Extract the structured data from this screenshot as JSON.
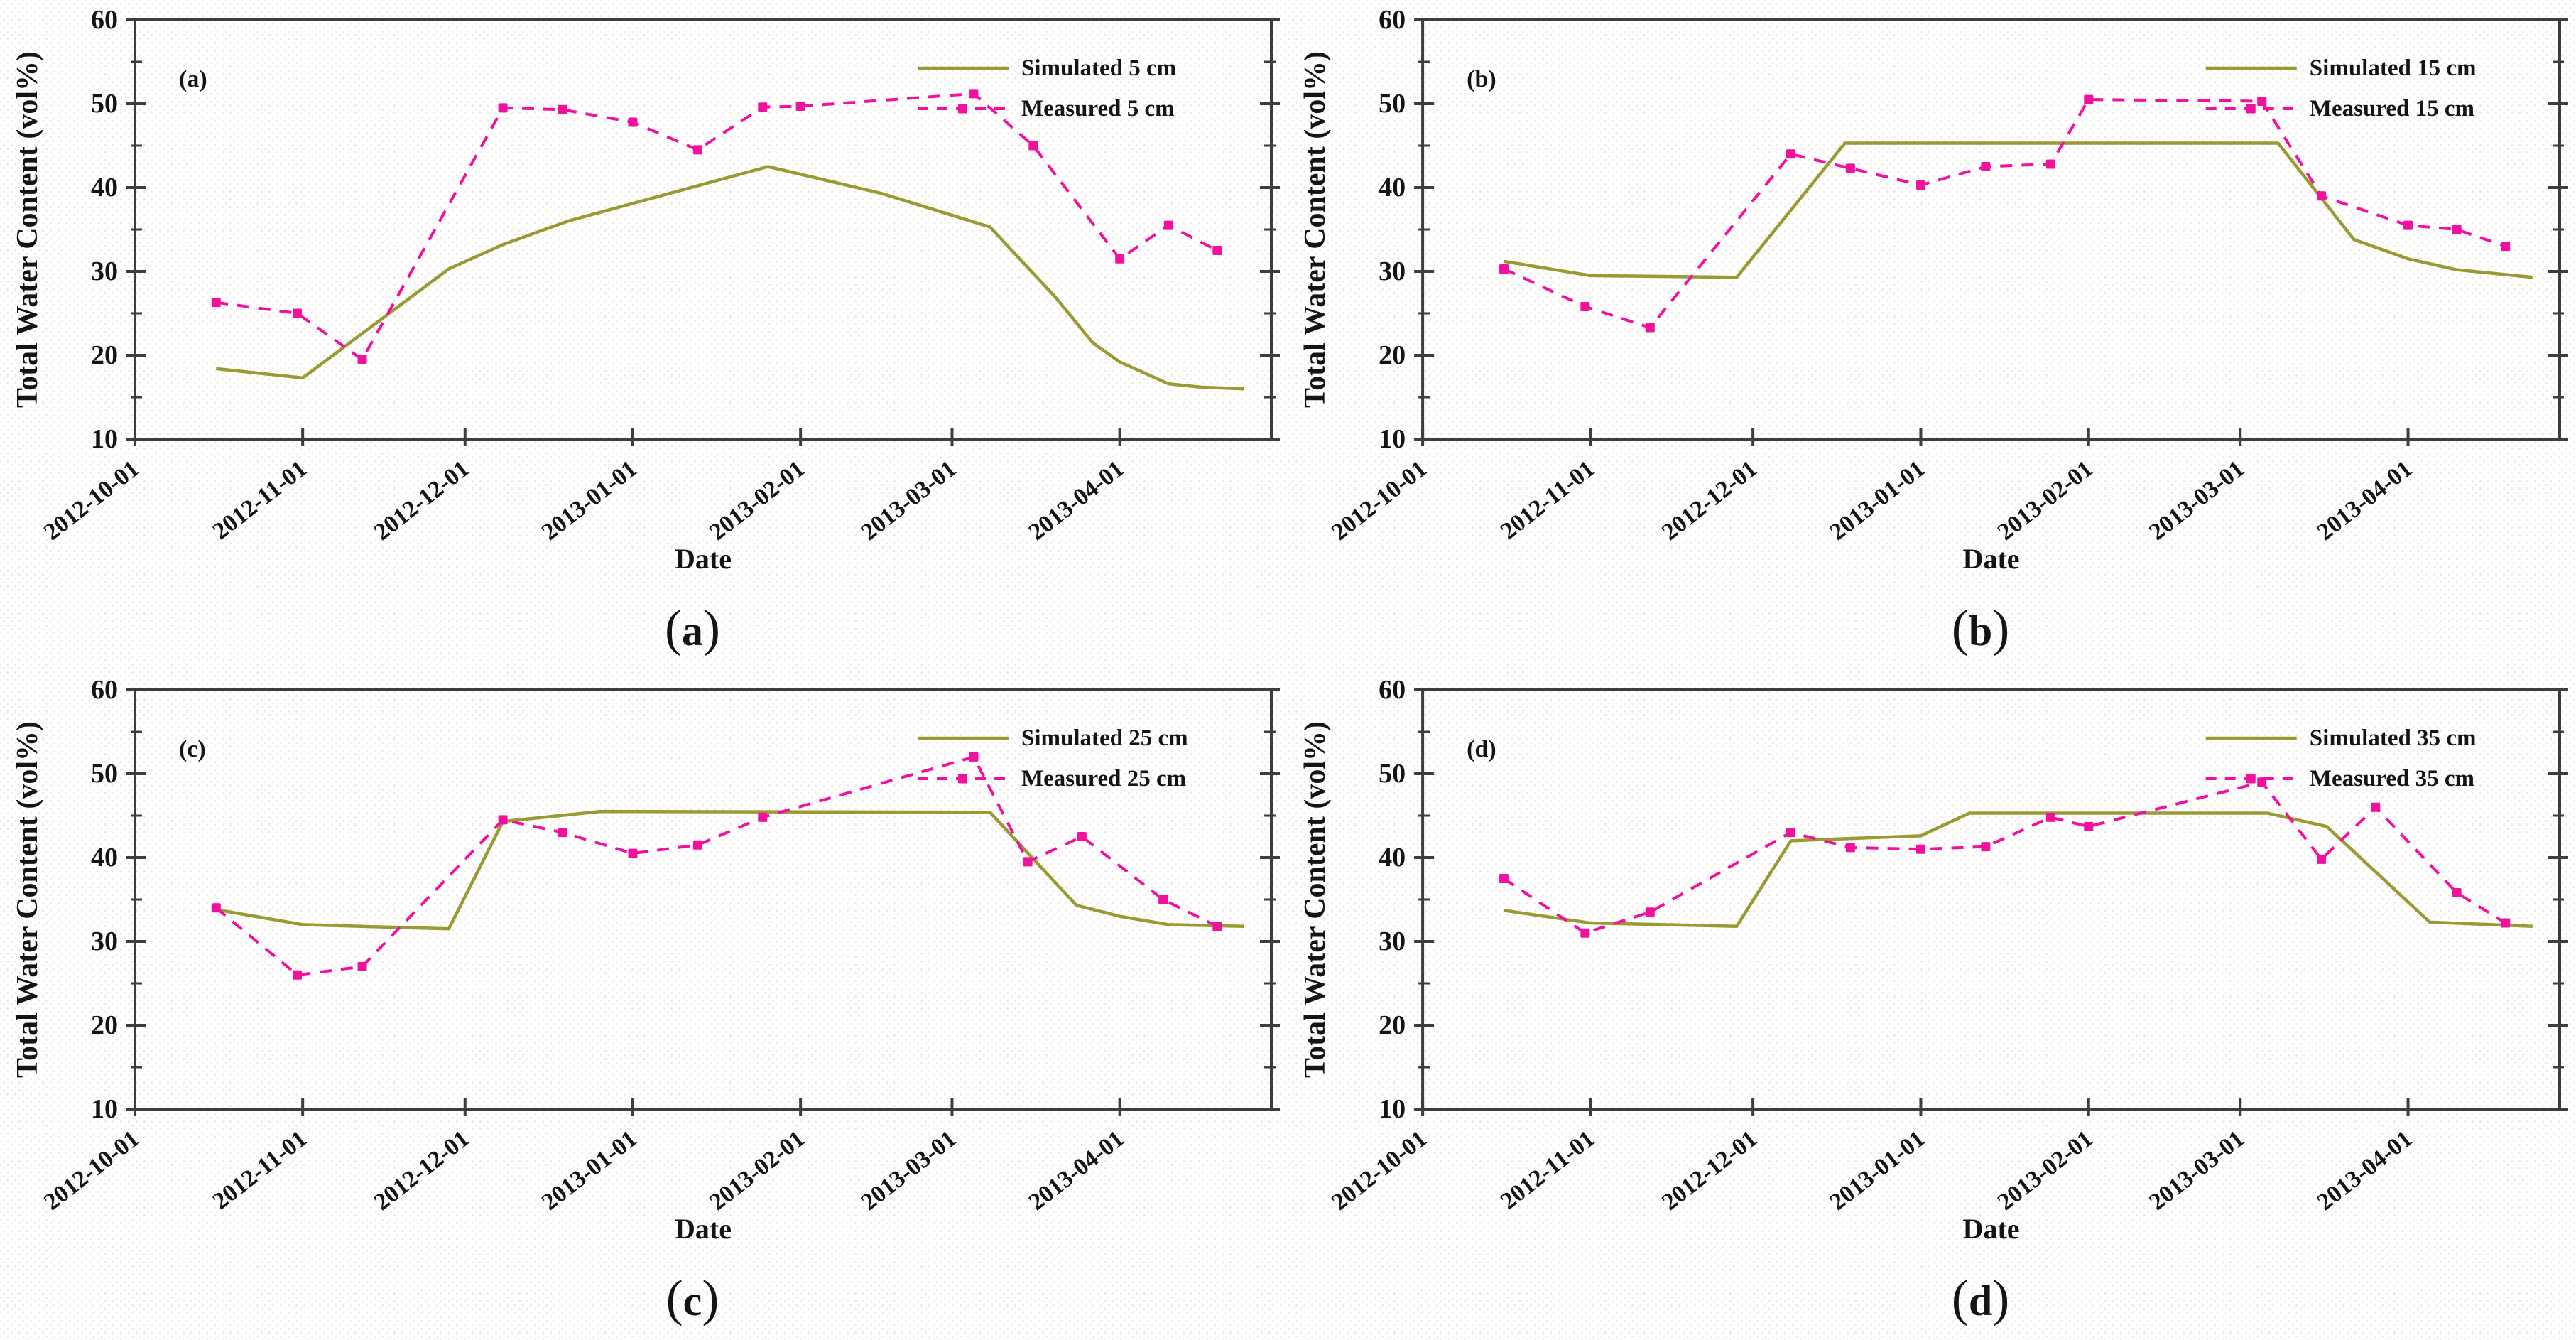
{
  "figure": {
    "y_axis_label": "Total Water Content (vol%)",
    "x_axis_label": "Date",
    "y_ticks": [
      10,
      20,
      30,
      40,
      50,
      60
    ],
    "y_minor_ticks": [
      15,
      25,
      35,
      45,
      55
    ],
    "x_tick_labels": [
      "2012-10-01",
      "2012-11-01",
      "2012-12-01",
      "2013-01-01",
      "2013-02-01",
      "2013-03-01",
      "2013-04-01"
    ],
    "x_tick_days": [
      0,
      31,
      61,
      92,
      123,
      151,
      182
    ],
    "ylim": [
      10,
      60
    ],
    "xlim_days": [
      0,
      210
    ],
    "grid": "off",
    "legend_position": "top-right-inside",
    "colors": {
      "simulated": "#9A9A33",
      "measured": "#F2119C",
      "axis": "#3d3d3d",
      "text": "#141414"
    }
  },
  "chart_data": [
    {
      "type": "line",
      "panel_letter": "(a)",
      "caption": {
        "open": "(",
        "letter": "a",
        "close": ")"
      },
      "legend": [
        "Simulated 5 cm",
        "Measured 5 cm"
      ],
      "series": [
        {
          "name": "Simulated 5 cm",
          "role": "simulated",
          "style": "solid",
          "x_days": [
            15,
            31,
            58,
            68,
            80,
            117,
            138,
            158,
            170,
            177,
            182,
            191,
            197,
            205
          ],
          "values": [
            18.4,
            17.3,
            30.3,
            33.2,
            36.0,
            42.5,
            39.3,
            35.3,
            27.0,
            21.5,
            19.2,
            16.6,
            16.2,
            16.0
          ]
        },
        {
          "name": "Measured 5 cm",
          "role": "measured",
          "style": "dashed",
          "x_days": [
            15,
            30,
            42,
            68,
            79,
            92,
            104,
            116,
            123,
            155,
            166,
            182,
            191,
            200
          ],
          "values": [
            26.3,
            25.0,
            19.5,
            49.5,
            49.3,
            47.8,
            44.5,
            49.6,
            49.7,
            51.2,
            45.0,
            31.5,
            35.5,
            32.5
          ]
        }
      ]
    },
    {
      "type": "line",
      "panel_letter": "(b)",
      "caption": {
        "open": "(",
        "letter": "b",
        "close": ")"
      },
      "legend": [
        "Simulated 15 cm",
        "Measured 15 cm"
      ],
      "series": [
        {
          "name": "Simulated 15 cm",
          "role": "simulated",
          "style": "solid",
          "x_days": [
            15,
            31,
            58,
            78,
            158,
            172,
            182,
            191,
            205
          ],
          "values": [
            31.2,
            29.5,
            29.3,
            45.3,
            45.3,
            33.8,
            31.5,
            30.2,
            29.3
          ]
        },
        {
          "name": "Measured 15 cm",
          "role": "measured",
          "style": "dashed",
          "x_days": [
            15,
            30,
            42,
            68,
            79,
            92,
            104,
            116,
            123,
            155,
            166,
            182,
            191,
            200
          ],
          "values": [
            30.3,
            25.8,
            23.3,
            44.0,
            42.3,
            40.3,
            42.5,
            42.8,
            50.5,
            50.3,
            39.0,
            35.5,
            35.0,
            33.0
          ]
        }
      ]
    },
    {
      "type": "line",
      "panel_letter": "(c)",
      "caption": {
        "open": "(",
        "letter": "c",
        "close": ")"
      },
      "legend": [
        "Simulated 25 cm",
        "Measured 25 cm"
      ],
      "series": [
        {
          "name": "Simulated 25 cm",
          "role": "simulated",
          "style": "solid",
          "x_days": [
            15,
            31,
            58,
            68,
            86,
            158,
            174,
            182,
            191,
            205
          ],
          "values": [
            33.8,
            32.0,
            31.5,
            44.3,
            45.5,
            45.4,
            34.3,
            33.0,
            32.0,
            31.8
          ]
        },
        {
          "name": "Measured 25 cm",
          "role": "measured",
          "style": "dashed",
          "x_days": [
            15,
            30,
            42,
            68,
            79,
            92,
            104,
            116,
            155,
            165,
            175,
            190,
            200
          ],
          "values": [
            34.0,
            26.0,
            27.0,
            44.5,
            43.0,
            40.5,
            41.5,
            44.8,
            52.0,
            39.5,
            42.5,
            35.0,
            31.8
          ]
        }
      ]
    },
    {
      "type": "line",
      "panel_letter": "(d)",
      "caption": {
        "open": "(",
        "letter": "d",
        "close": ")"
      },
      "legend": [
        "Simulated 35 cm",
        "Measured 35 cm"
      ],
      "series": [
        {
          "name": "Simulated 35 cm",
          "role": "simulated",
          "style": "solid",
          "x_days": [
            15,
            31,
            58,
            68,
            92,
            101,
            156,
            167,
            186,
            205
          ],
          "values": [
            33.7,
            32.2,
            31.8,
            42.0,
            42.6,
            45.3,
            45.3,
            43.7,
            32.3,
            31.8
          ]
        },
        {
          "name": "Measured 35 cm",
          "role": "measured",
          "style": "dashed",
          "x_days": [
            15,
            30,
            42,
            68,
            79,
            92,
            104,
            116,
            123,
            155,
            166,
            176,
            191,
            200
          ],
          "values": [
            37.5,
            31.0,
            33.5,
            43.0,
            41.2,
            41.0,
            41.3,
            44.8,
            43.7,
            49.0,
            39.8,
            46.0,
            35.8,
            32.2
          ]
        }
      ]
    }
  ]
}
